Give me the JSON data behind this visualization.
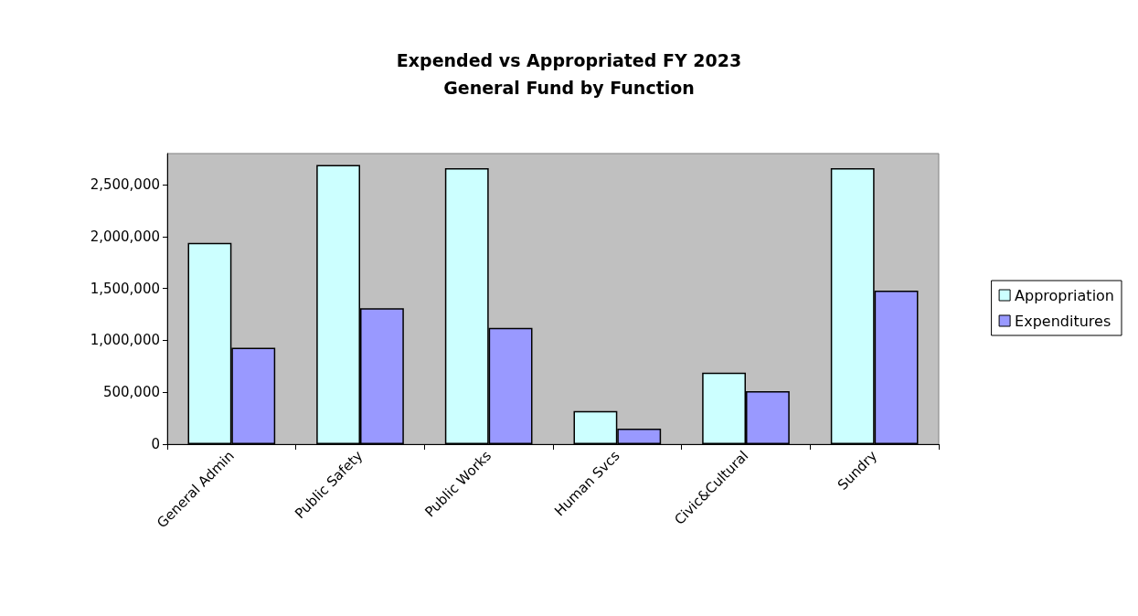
{
  "chart_data": {
    "type": "bar",
    "title": "Expended vs Appropriated FY 2023\nGeneral Fund by Function",
    "categories": [
      "General Admin",
      "Public Safety",
      "Public Works",
      "Human Svcs",
      "Civic&Cultural",
      "Sundry"
    ],
    "series": [
      {
        "name": "Appropriation",
        "color": "#ccffff",
        "values": [
          1940000,
          2690000,
          2660000,
          320000,
          690000,
          2660000
        ]
      },
      {
        "name": "Expenditures",
        "color": "#9999ff",
        "values": [
          930000,
          1310000,
          1120000,
          150000,
          510000,
          1480000
        ]
      }
    ],
    "ylim": [
      0,
      2800000
    ],
    "yticks": [
      0,
      {
        "value": 500000,
        "label": "500,000"
      },
      {
        "value": 1000000,
        "label": "1,000,000"
      },
      {
        "value": 1500000,
        "label": "1,500,000"
      },
      {
        "value": 2000000,
        "label": "2,000,000"
      },
      {
        "value": 2500000,
        "label": "2,500,000"
      }
    ],
    "grid": false,
    "legend": "right"
  }
}
